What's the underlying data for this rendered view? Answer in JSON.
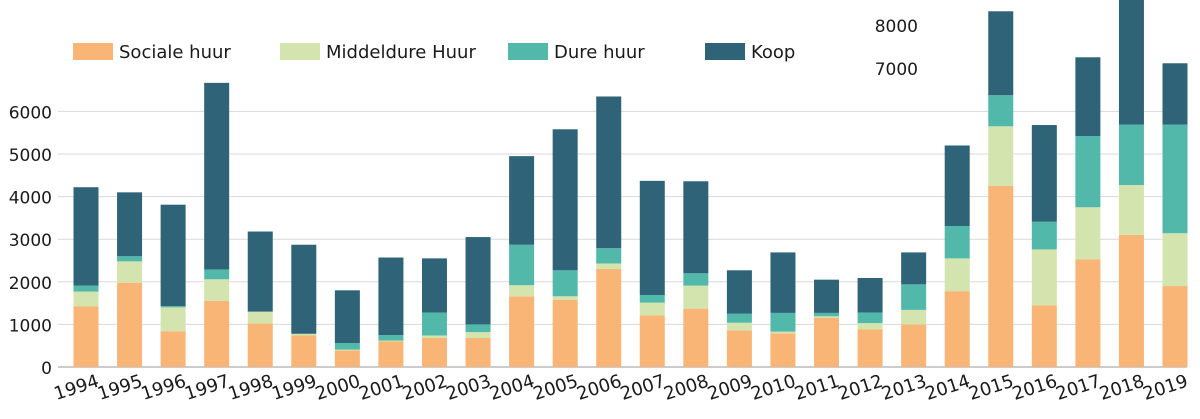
{
  "chart_data": {
    "type": "bar",
    "stacked": true,
    "categories": [
      "1994",
      "1995",
      "1996",
      "1997",
      "1998",
      "1999",
      "2000",
      "2001",
      "2002",
      "2003",
      "2004",
      "2005",
      "2006",
      "2007",
      "2008",
      "2009",
      "2010",
      "2011",
      "2012",
      "2013",
      "2014",
      "2015",
      "2016",
      "2017",
      "2018",
      "2019"
    ],
    "series": [
      {
        "name": "Sociale  huur",
        "color": "#f8b575",
        "values": [
          1420,
          1980,
          840,
          1550,
          1020,
          740,
          390,
          600,
          680,
          680,
          1660,
          1580,
          2300,
          1210,
          1370,
          860,
          790,
          1150,
          880,
          1000,
          1780,
          4250,
          1450,
          2530,
          3100,
          1900
        ]
      },
      {
        "name": "Middeldure Huur",
        "color": "#d3e4ae",
        "values": [
          350,
          500,
          560,
          510,
          280,
          40,
          20,
          20,
          60,
          140,
          260,
          80,
          130,
          300,
          540,
          180,
          40,
          40,
          150,
          340,
          770,
          1400,
          1310,
          1220,
          1170,
          1240
        ]
      },
      {
        "name": "Dure  huur",
        "color": "#52b9aa",
        "values": [
          140,
          120,
          30,
          230,
          0,
          0,
          150,
          130,
          540,
          180,
          950,
          610,
          360,
          180,
          290,
          210,
          440,
          80,
          250,
          600,
          760,
          730,
          650,
          1670,
          1420,
          2550
        ]
      },
      {
        "name": "Koop",
        "color": "#2e6378",
        "values": [
          2310,
          1500,
          2380,
          4380,
          1880,
          2090,
          1240,
          1820,
          1270,
          2050,
          2080,
          3310,
          3560,
          2680,
          2160,
          1020,
          1420,
          780,
          810,
          750,
          1890,
          1970,
          2270,
          1850,
          2930,
          1440
        ]
      }
    ],
    "yticks_lower": [
      0,
      1000,
      2000,
      3000,
      4000,
      5000,
      6000
    ],
    "yticks_upper": [
      7000,
      8000
    ],
    "ylim": [
      0,
      8800
    ],
    "grid": true,
    "legend_position": "top-left",
    "title": "",
    "xlabel": "",
    "ylabel": ""
  }
}
